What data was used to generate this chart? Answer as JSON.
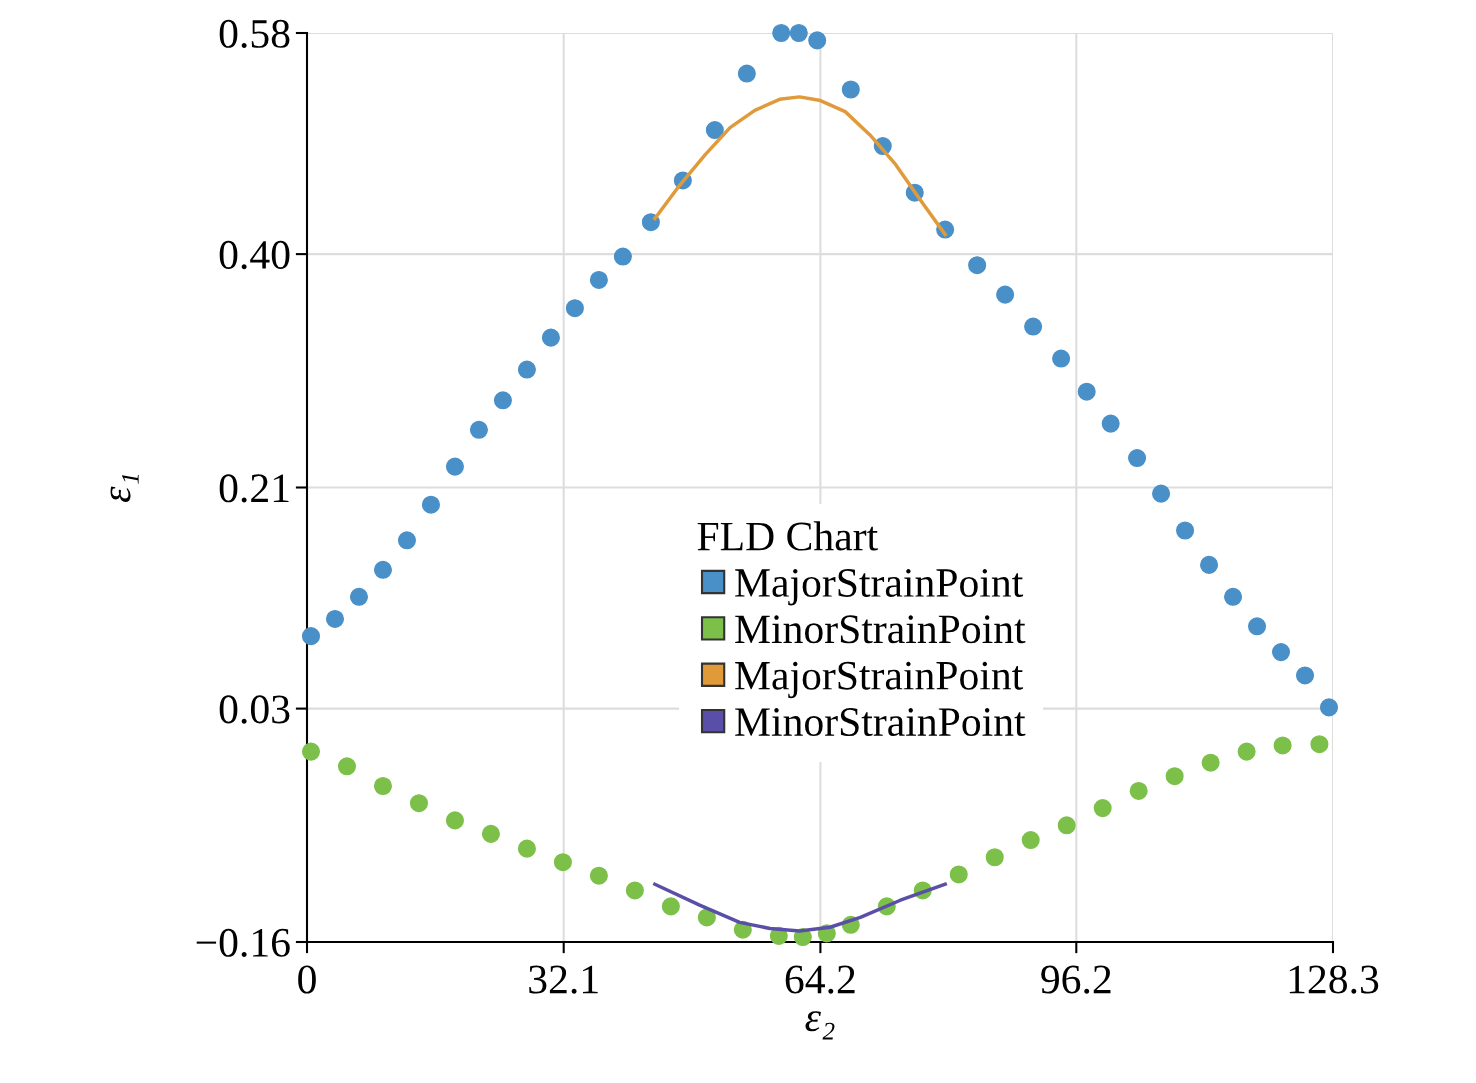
{
  "chart_data": {
    "type": "scatter",
    "xlabel": "ε₂",
    "ylabel": "ε₁",
    "legend_title": "FLD Chart",
    "legend": "center",
    "grid": true,
    "xlim": [
      0,
      128.3
    ],
    "xticks": [
      0,
      32.1,
      64.2,
      96.2,
      128.3
    ],
    "ylim": [
      -0.16,
      0.58
    ],
    "yticks": [
      {
        "value": -0.16,
        "label": "−0.16"
      },
      0.03,
      0.21,
      {
        "value": 0.4,
        "label": "0.40"
      },
      0.58
    ],
    "series": [
      {
        "name": "MajorStrainPoint",
        "marker": "circle",
        "color": "#4a90c8",
        "x": [
          0.5,
          3.5,
          6.5,
          9.5,
          12.5,
          15.5,
          18.5,
          21.5,
          24.5,
          27.5,
          30.5,
          33.5,
          36.5,
          39.5,
          43.0,
          47.0,
          51.0,
          55.0,
          59.3,
          61.5,
          63.8,
          68.0,
          72.0,
          76.0,
          79.8,
          83.8,
          87.3,
          90.8,
          94.3,
          97.5,
          100.5,
          103.8,
          106.8,
          109.8,
          112.8,
          115.8,
          118.8,
          121.8,
          124.8,
          127.8
        ],
        "values": [
          0.089,
          0.103,
          0.121,
          0.143,
          0.167,
          0.196,
          0.227,
          0.257,
          0.281,
          0.306,
          0.332,
          0.356,
          0.379,
          0.398,
          0.426,
          0.46,
          0.501,
          0.547,
          0.58,
          0.58,
          0.574,
          0.534,
          0.488,
          0.45,
          0.42,
          0.391,
          0.367,
          0.341,
          0.315,
          0.288,
          0.262,
          0.234,
          0.205,
          0.175,
          0.147,
          0.121,
          0.097,
          0.076,
          0.057,
          0.031
        ]
      },
      {
        "name": "MinorStrainPoint",
        "marker": "circle",
        "color": "#7cc04a",
        "x": [
          0.5,
          5.0,
          9.5,
          14.0,
          18.5,
          23.0,
          27.5,
          32.0,
          36.5,
          41.0,
          45.5,
          50.0,
          54.5,
          59.0,
          62.0,
          65.0,
          68.0,
          72.5,
          77.0,
          81.5,
          86.0,
          90.5,
          95.0,
          99.5,
          104.0,
          108.5,
          113.0,
          117.5,
          122.0,
          126.6
        ],
        "values": [
          -0.005,
          -0.017,
          -0.033,
          -0.047,
          -0.061,
          -0.072,
          -0.084,
          -0.095,
          -0.106,
          -0.118,
          -0.131,
          -0.14,
          -0.15,
          -0.155,
          -0.156,
          -0.153,
          -0.146,
          -0.131,
          -0.118,
          -0.105,
          -0.091,
          -0.077,
          -0.065,
          -0.051,
          -0.037,
          -0.025,
          -0.014,
          -0.005,
          0.0,
          0.001
        ]
      },
      {
        "name": "MajorStrainPoint",
        "type": "line",
        "marker": "none",
        "color": "#e09a3a",
        "x": [
          43.5,
          46.6,
          49.8,
          52.9,
          56.0,
          59.1,
          61.6,
          64.2,
          67.3,
          70.4,
          73.6,
          76.7,
          79.8
        ],
        "values": [
          0.429,
          0.456,
          0.481,
          0.503,
          0.517,
          0.526,
          0.528,
          0.525,
          0.516,
          0.497,
          0.473,
          0.444,
          0.416
        ]
      },
      {
        "name": "MinorStrainPoint",
        "type": "line",
        "marker": "none",
        "color": "#5a4fa8",
        "x": [
          43.5,
          49.1,
          54.1,
          57.9,
          61.6,
          65.4,
          69.2,
          74.2,
          79.8
        ],
        "values": [
          -0.113,
          -0.13,
          -0.144,
          -0.149,
          -0.151,
          -0.148,
          -0.14,
          -0.126,
          -0.113
        ]
      }
    ]
  }
}
